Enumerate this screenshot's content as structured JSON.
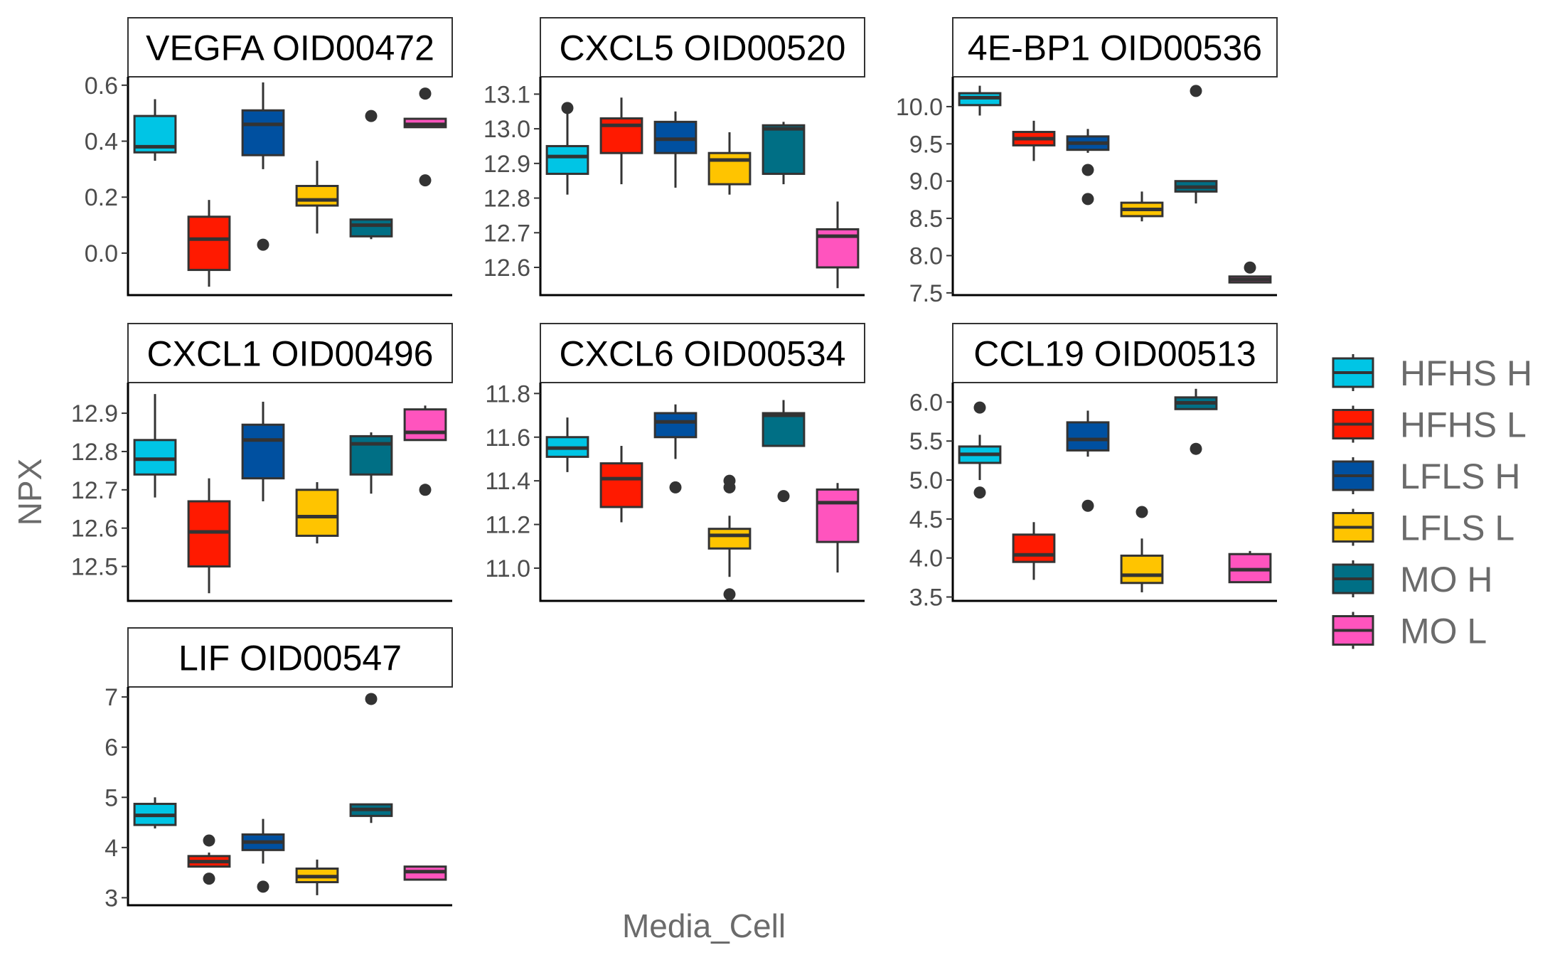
{
  "chart_data": {
    "type": "boxplot",
    "xlabel": "Media_Cell",
    "ylabel": "NPX",
    "groups": [
      "HFHS H",
      "HFHS L",
      "LFLS H",
      "LFLS L",
      "MO H",
      "MO L"
    ],
    "colors": {
      "HFHS H": "#00C5E5",
      "HFHS L": "#FF1A00",
      "LFLS H": "#0050A0",
      "LFLS L": "#FFC400",
      "MO H": "#006F85",
      "MO L": "#FF54BE"
    },
    "legend_position": "right",
    "grid": false,
    "panels": [
      {
        "title": "VEGFA OID00472",
        "ylim": [
          -0.15,
          0.63
        ],
        "yticks": [
          "0.0",
          "0.2",
          "0.4",
          "0.6"
        ],
        "boxes": [
          {
            "group": "HFHS H",
            "q1": 0.36,
            "median": 0.38,
            "q3": 0.49,
            "whisker_low": 0.33,
            "whisker_high": 0.55,
            "outliers": []
          },
          {
            "group": "HFHS L",
            "q1": -0.06,
            "median": 0.05,
            "q3": 0.13,
            "whisker_low": -0.12,
            "whisker_high": 0.19,
            "outliers": []
          },
          {
            "group": "LFLS H",
            "q1": 0.35,
            "median": 0.46,
            "q3": 0.51,
            "whisker_low": 0.3,
            "whisker_high": 0.61,
            "outliers": [
              0.03
            ]
          },
          {
            "group": "LFLS L",
            "q1": 0.17,
            "median": 0.19,
            "q3": 0.24,
            "whisker_low": 0.07,
            "whisker_high": 0.33,
            "outliers": []
          },
          {
            "group": "MO H",
            "q1": 0.06,
            "median": 0.1,
            "q3": 0.12,
            "whisker_low": 0.05,
            "whisker_high": 0.12,
            "outliers": [
              0.49
            ]
          },
          {
            "group": "MO L",
            "q1": 0.45,
            "median": 0.46,
            "q3": 0.48,
            "whisker_low": 0.45,
            "whisker_high": 0.48,
            "outliers": [
              0.57,
              0.26
            ]
          }
        ]
      },
      {
        "title": "CXCL5 OID00520",
        "ylim": [
          12.52,
          13.15
        ],
        "yticks": [
          "12.6",
          "12.7",
          "12.8",
          "12.9",
          "13.0",
          "13.1"
        ],
        "boxes": [
          {
            "group": "HFHS H",
            "q1": 12.87,
            "median": 12.92,
            "q3": 12.95,
            "whisker_low": 12.81,
            "whisker_high": 13.06,
            "outliers": [
              13.06
            ]
          },
          {
            "group": "HFHS L",
            "q1": 12.93,
            "median": 13.01,
            "q3": 13.03,
            "whisker_low": 12.84,
            "whisker_high": 13.09,
            "outliers": []
          },
          {
            "group": "LFLS H",
            "q1": 12.93,
            "median": 12.97,
            "q3": 13.02,
            "whisker_low": 12.83,
            "whisker_high": 13.05,
            "outliers": []
          },
          {
            "group": "LFLS L",
            "q1": 12.84,
            "median": 12.91,
            "q3": 12.93,
            "whisker_low": 12.81,
            "whisker_high": 12.99,
            "outliers": []
          },
          {
            "group": "MO H",
            "q1": 12.87,
            "median": 13.0,
            "q3": 13.01,
            "whisker_low": 12.84,
            "whisker_high": 13.02,
            "outliers": []
          },
          {
            "group": "MO L",
            "q1": 12.6,
            "median": 12.69,
            "q3": 12.71,
            "whisker_low": 12.54,
            "whisker_high": 12.79,
            "outliers": []
          }
        ]
      },
      {
        "title": "4E-BP1 OID00536",
        "ylim": [
          7.47,
          10.4
        ],
        "yticks": [
          "7.5",
          "8.0",
          "8.5",
          "9.0",
          "9.5",
          "10.0"
        ],
        "boxes": [
          {
            "group": "HFHS H",
            "q1": 10.02,
            "median": 10.12,
            "q3": 10.18,
            "whisker_low": 9.88,
            "whisker_high": 10.28,
            "outliers": []
          },
          {
            "group": "HFHS L",
            "q1": 9.48,
            "median": 9.57,
            "q3": 9.66,
            "whisker_low": 9.27,
            "whisker_high": 9.81,
            "outliers": []
          },
          {
            "group": "LFLS H",
            "q1": 9.42,
            "median": 9.51,
            "q3": 9.6,
            "whisker_low": 9.38,
            "whisker_high": 9.7,
            "outliers": [
              9.15,
              8.76
            ]
          },
          {
            "group": "LFLS L",
            "q1": 8.53,
            "median": 8.62,
            "q3": 8.71,
            "whisker_low": 8.46,
            "whisker_high": 8.86,
            "outliers": []
          },
          {
            "group": "MO H",
            "q1": 8.86,
            "median": 8.92,
            "q3": 9.0,
            "whisker_low": 8.7,
            "whisker_high": 9.0,
            "outliers": [
              10.21
            ]
          },
          {
            "group": "MO L",
            "q1": 7.64,
            "median": 7.68,
            "q3": 7.72,
            "whisker_low": 7.64,
            "whisker_high": 7.72,
            "outliers": [
              7.84
            ]
          }
        ]
      },
      {
        "title": "CXCL1 OID00496",
        "ylim": [
          12.41,
          12.98
        ],
        "yticks": [
          "12.5",
          "12.6",
          "12.7",
          "12.8",
          "12.9"
        ],
        "boxes": [
          {
            "group": "HFHS H",
            "q1": 12.74,
            "median": 12.78,
            "q3": 12.83,
            "whisker_low": 12.68,
            "whisker_high": 12.95,
            "outliers": []
          },
          {
            "group": "HFHS L",
            "q1": 12.5,
            "median": 12.59,
            "q3": 12.67,
            "whisker_low": 12.43,
            "whisker_high": 12.73,
            "outliers": []
          },
          {
            "group": "LFLS H",
            "q1": 12.73,
            "median": 12.83,
            "q3": 12.87,
            "whisker_low": 12.67,
            "whisker_high": 12.93,
            "outliers": []
          },
          {
            "group": "LFLS L",
            "q1": 12.58,
            "median": 12.63,
            "q3": 12.7,
            "whisker_low": 12.56,
            "whisker_high": 12.72,
            "outliers": []
          },
          {
            "group": "MO H",
            "q1": 12.74,
            "median": 12.82,
            "q3": 12.84,
            "whisker_low": 12.69,
            "whisker_high": 12.85,
            "outliers": []
          },
          {
            "group": "MO L",
            "q1": 12.83,
            "median": 12.85,
            "q3": 12.91,
            "whisker_low": 12.83,
            "whisker_high": 12.92,
            "outliers": [
              12.7
            ]
          }
        ]
      },
      {
        "title": "CXCL6 OID00534",
        "ylim": [
          10.85,
          11.85
        ],
        "yticks": [
          "11.0",
          "11.2",
          "11.4",
          "11.6",
          "11.8"
        ],
        "boxes": [
          {
            "group": "HFHS H",
            "q1": 11.51,
            "median": 11.55,
            "q3": 11.6,
            "whisker_low": 11.44,
            "whisker_high": 11.69,
            "outliers": []
          },
          {
            "group": "HFHS L",
            "q1": 11.28,
            "median": 11.41,
            "q3": 11.48,
            "whisker_low": 11.21,
            "whisker_high": 11.56,
            "outliers": []
          },
          {
            "group": "LFLS H",
            "q1": 11.6,
            "median": 11.67,
            "q3": 11.71,
            "whisker_low": 11.5,
            "whisker_high": 11.75,
            "outliers": [
              11.37
            ]
          },
          {
            "group": "LFLS L",
            "q1": 11.09,
            "median": 11.15,
            "q3": 11.18,
            "whisker_low": 10.96,
            "whisker_high": 11.24,
            "outliers": [
              11.4,
              11.37,
              10.88
            ]
          },
          {
            "group": "MO H",
            "q1": 11.56,
            "median": 11.7,
            "q3": 11.71,
            "whisker_low": 11.56,
            "whisker_high": 11.77,
            "outliers": [
              11.33
            ]
          },
          {
            "group": "MO L",
            "q1": 11.12,
            "median": 11.3,
            "q3": 11.36,
            "whisker_low": 10.98,
            "whisker_high": 11.39,
            "outliers": []
          }
        ]
      },
      {
        "title": "CCL19 OID00513",
        "ylim": [
          3.45,
          6.25
        ],
        "yticks": [
          "3.5",
          "4.0",
          "4.5",
          "5.0",
          "5.5",
          "6.0"
        ],
        "boxes": [
          {
            "group": "HFHS H",
            "q1": 5.22,
            "median": 5.33,
            "q3": 5.43,
            "whisker_low": 5.0,
            "whisker_high": 5.58,
            "outliers": [
              5.93,
              4.84
            ]
          },
          {
            "group": "HFHS L",
            "q1": 3.95,
            "median": 4.04,
            "q3": 4.3,
            "whisker_low": 3.72,
            "whisker_high": 4.46,
            "outliers": []
          },
          {
            "group": "LFLS H",
            "q1": 5.38,
            "median": 5.52,
            "q3": 5.74,
            "whisker_low": 5.3,
            "whisker_high": 5.89,
            "outliers": [
              4.67
            ]
          },
          {
            "group": "LFLS L",
            "q1": 3.68,
            "median": 3.78,
            "q3": 4.03,
            "whisker_low": 3.56,
            "whisker_high": 4.25,
            "outliers": [
              4.59
            ]
          },
          {
            "group": "MO H",
            "q1": 5.91,
            "median": 5.99,
            "q3": 6.06,
            "whisker_low": 5.91,
            "whisker_high": 6.17,
            "outliers": [
              5.4
            ]
          },
          {
            "group": "MO L",
            "q1": 3.69,
            "median": 3.85,
            "q3": 4.05,
            "whisker_low": 3.69,
            "whisker_high": 4.09,
            "outliers": []
          }
        ]
      },
      {
        "title": "LIF OID00547",
        "ylim": [
          2.85,
          7.2
        ],
        "yticks": [
          "3",
          "4",
          "5",
          "6",
          "7"
        ],
        "boxes": [
          {
            "group": "HFHS H",
            "q1": 4.45,
            "median": 4.64,
            "q3": 4.87,
            "whisker_low": 4.38,
            "whisker_high": 5.0,
            "outliers": []
          },
          {
            "group": "HFHS L",
            "q1": 3.62,
            "median": 3.72,
            "q3": 3.83,
            "whisker_low": 3.62,
            "whisker_high": 3.9,
            "outliers": [
              4.14,
              3.38
            ]
          },
          {
            "group": "LFLS H",
            "q1": 3.95,
            "median": 4.11,
            "q3": 4.26,
            "whisker_low": 3.68,
            "whisker_high": 4.57,
            "outliers": [
              3.22
            ]
          },
          {
            "group": "LFLS L",
            "q1": 3.31,
            "median": 3.42,
            "q3": 3.58,
            "whisker_low": 3.05,
            "whisker_high": 3.76,
            "outliers": []
          },
          {
            "group": "MO H",
            "q1": 4.63,
            "median": 4.76,
            "q3": 4.86,
            "whisker_low": 4.49,
            "whisker_high": 4.86,
            "outliers": [
              6.96
            ]
          },
          {
            "group": "MO L",
            "q1": 3.36,
            "median": 3.52,
            "q3": 3.62,
            "whisker_low": 3.36,
            "whisker_high": 3.62,
            "outliers": []
          }
        ]
      }
    ]
  }
}
